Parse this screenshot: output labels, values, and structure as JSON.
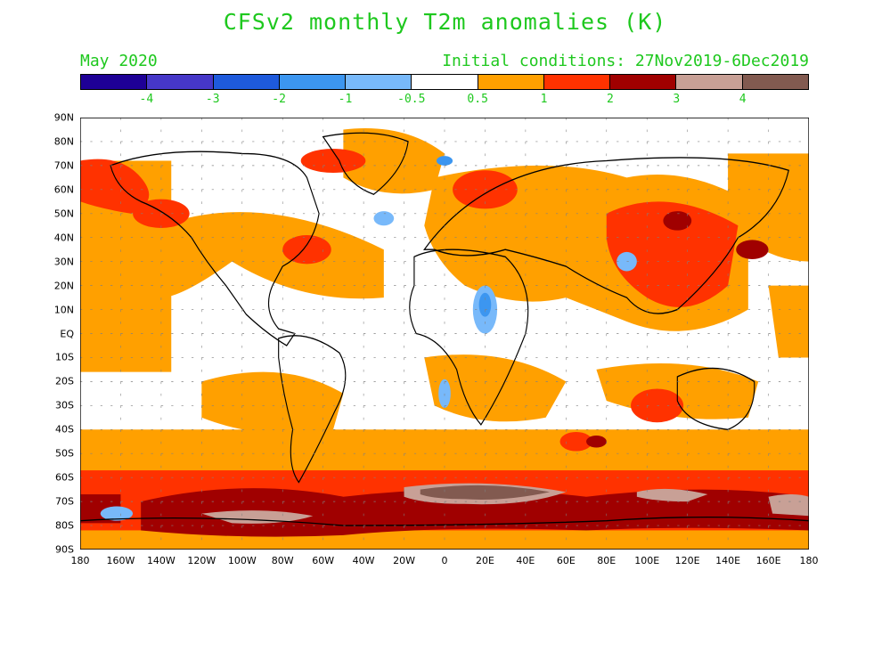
{
  "title": "CFSv2 monthly T2m anomalies (K)",
  "subtitle_left": "May 2020",
  "subtitle_right": "Initial conditions: 27Nov2019-6Dec2019",
  "colorbar": {
    "colors": [
      "#1e0096",
      "#4637c8",
      "#1e5adc",
      "#3c96f0",
      "#78b9fa",
      "#ffffff",
      "#ffa000",
      "#ff3200",
      "#a00000",
      "#c8a096",
      "#825a50"
    ],
    "labels": [
      "-4",
      "-3",
      "-2",
      "-1",
      "-0.5",
      "0.5",
      "1",
      "2",
      "3",
      "4"
    ]
  },
  "map": {
    "lat_labels": [
      "90N",
      "80N",
      "70N",
      "60N",
      "50N",
      "40N",
      "30N",
      "20N",
      "10N",
      "EQ",
      "10S",
      "20S",
      "30S",
      "40S",
      "50S",
      "60S",
      "70S",
      "80S",
      "90S"
    ],
    "lon_labels": [
      "180",
      "160W",
      "140W",
      "120W",
      "100W",
      "80W",
      "60W",
      "40W",
      "20W",
      "0",
      "20E",
      "40E",
      "60E",
      "80E",
      "100E",
      "120E",
      "140E",
      "160E",
      "180"
    ]
  }
}
